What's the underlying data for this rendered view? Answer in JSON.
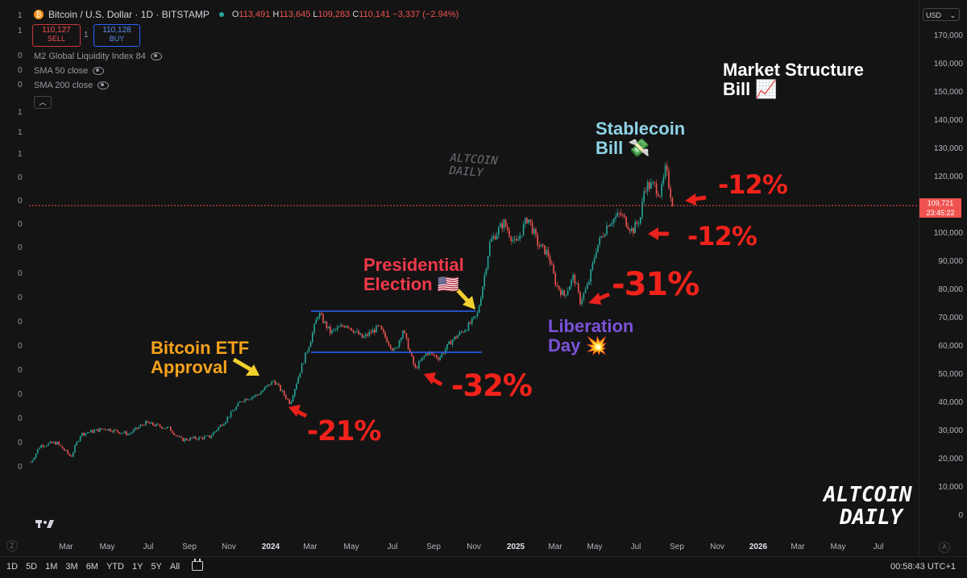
{
  "header": {
    "symbol_title": "Bitcoin / U.S. Dollar · 1D · BITSTAMP",
    "ohlc": {
      "o_label": "O",
      "o_val": "113,491",
      "h_label": "H",
      "h_val": "113,645",
      "l_label": "L",
      "l_val": "109,283",
      "c_label": "C",
      "c_val": "110,141",
      "change": "−3,337 (−2.94%)"
    },
    "sell_price": "110,127",
    "sell_label": "SELL",
    "spread": "1",
    "buy_price": "110,128",
    "buy_label": "BUY",
    "currency": "USD"
  },
  "indicators": [
    {
      "label": "M2 Global Liquidity Index 84"
    },
    {
      "label": "SMA 50 close"
    },
    {
      "label": "SMA 200 close"
    }
  ],
  "left_scale": [
    "1",
    "1",
    "0",
    "0",
    "0",
    "1",
    "1",
    "1",
    "0",
    "0",
    "0",
    "0",
    "0",
    "0",
    "0",
    "0",
    "0",
    "0",
    "0",
    "0",
    "0"
  ],
  "price_scale": {
    "labels": [
      "170,000",
      "160,000",
      "150,000",
      "140,000",
      "130,000",
      "120,000",
      "100,000",
      "90,000",
      "80,000",
      "70,000",
      "60,000",
      "50,000",
      "40,000",
      "30,000",
      "20,000",
      "10,000",
      "0"
    ],
    "current_price": "109,721",
    "countdown": "23:45:22"
  },
  "time_axis": [
    "Mar",
    "May",
    "Jul",
    "Sep",
    "Nov",
    "2024",
    "Mar",
    "May",
    "Jul",
    "Sep",
    "Nov",
    "2025",
    "Mar",
    "May",
    "Jul",
    "Sep",
    "Nov",
    "2026",
    "Mar",
    "May",
    "Jul"
  ],
  "annotations": {
    "etf_line1": "Bitcoin ETF",
    "etf_line2": "Approval",
    "election_line1": "Presidential",
    "election_line2": "Election 🇺🇸",
    "liberation_line1": "Liberation",
    "liberation_line2": "Day 💥",
    "stablecoin_line1": "Stablecoin",
    "stablecoin_line2": "Bill 💸",
    "market_line1": "Market Structure",
    "market_line2": "Bill 📈",
    "drop_21": "-21%",
    "drop_32": "-32%",
    "drop_31": "-31%",
    "drop_12a": "-12%",
    "drop_12b": "-12%"
  },
  "watermark": {
    "line1": "ALTCOIN",
    "line2": "DAILY"
  },
  "bottom_bar": {
    "timeframes": [
      "1D",
      "5D",
      "1M",
      "3M",
      "6M",
      "YTD",
      "1Y",
      "5Y",
      "All"
    ],
    "clock": "00:58:43 UTC+1"
  },
  "colors": {
    "up": "#26a69a",
    "down": "#ef5350",
    "range_line": "#2962ff",
    "etf": "#f7a21b",
    "election": "#f0394a",
    "liberation": "#7b52d9",
    "stablecoin": "#8fd3e8",
    "arrow_red": "#e8211c",
    "arrow_yellow": "#f2d12e"
  }
}
